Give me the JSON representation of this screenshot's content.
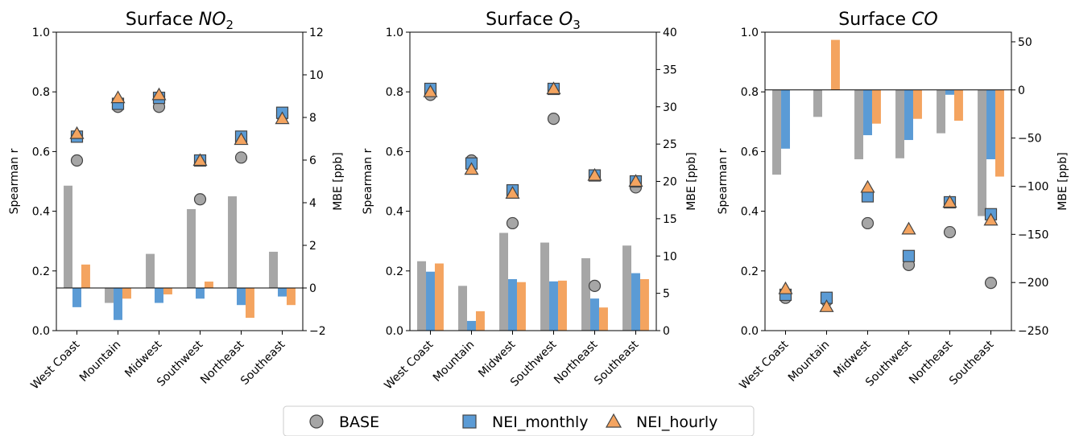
{
  "legend": {
    "placement": "bottom-center",
    "entries": [
      {
        "label": "BASE",
        "marker": "circle",
        "color": "#a6a6a6"
      },
      {
        "label": "NEI_monthly",
        "marker": "square",
        "color": "#5b9bd5"
      },
      {
        "label": "NEI_hourly",
        "marker": "triangle",
        "color": "#f4a460"
      }
    ]
  },
  "colors": {
    "BASE": "#a6a6a6",
    "NEI_monthly": "#5b9bd5",
    "NEI_hourly": "#f4a460"
  },
  "chart_data": [
    {
      "type": "bar",
      "title_prefix": "Surface ",
      "title_species": "NO",
      "title_sub": "2",
      "categories": [
        "West Coast",
        "Mountain",
        "Midwest",
        "Southwest",
        "Northeast",
        "Southeast"
      ],
      "ylabel_left": "Spearman r",
      "ylabel_right": "MBE [ppb]",
      "ylim_left": [
        0,
        1
      ],
      "ylim_right": [
        -2,
        12
      ],
      "yticks_left": [
        "0.0",
        "0.2",
        "0.4",
        "0.6",
        "0.8",
        "1.0"
      ],
      "yticks_right": [
        "−2",
        "0",
        "2",
        "4",
        "6",
        "8",
        "10",
        "12"
      ],
      "yticks_right_values": [
        -2,
        0,
        2,
        4,
        6,
        8,
        10,
        12
      ],
      "grid": false,
      "mbe_bars": {
        "BASE": [
          4.8,
          -0.7,
          1.6,
          3.7,
          4.3,
          1.7
        ],
        "NEI_monthly": [
          -0.9,
          -1.5,
          -0.7,
          -0.5,
          -0.8,
          -0.4
        ],
        "NEI_hourly": [
          1.1,
          -0.5,
          -0.3,
          0.3,
          -1.4,
          -0.8
        ]
      },
      "spearman_markers": {
        "BASE": [
          0.57,
          0.75,
          0.75,
          0.44,
          0.58,
          0.72
        ],
        "NEI_monthly": [
          0.65,
          0.76,
          0.78,
          0.57,
          0.65,
          0.73
        ],
        "NEI_hourly": [
          0.66,
          0.78,
          0.79,
          0.57,
          0.64,
          0.71
        ]
      }
    },
    {
      "type": "bar",
      "title_prefix": "Surface ",
      "title_species": "O",
      "title_sub": "3",
      "categories": [
        "West Coast",
        "Mountain",
        "Midwest",
        "Southwest",
        "Northeast",
        "Southeast"
      ],
      "ylabel_left": "Spearman r",
      "ylabel_right": "MBE [ppb]",
      "ylim_left": [
        0,
        1
      ],
      "ylim_right": [
        0,
        40
      ],
      "yticks_left": [
        "0.0",
        "0.2",
        "0.4",
        "0.6",
        "0.8",
        "1.0"
      ],
      "yticks_right": [
        "0",
        "5",
        "10",
        "15",
        "20",
        "25",
        "30",
        "35",
        "40"
      ],
      "yticks_right_values": [
        0,
        5,
        10,
        15,
        20,
        25,
        30,
        35,
        40
      ],
      "grid": false,
      "mbe_bars": {
        "BASE": [
          9.3,
          6.0,
          13.1,
          11.8,
          9.7,
          11.4
        ],
        "NEI_monthly": [
          7.9,
          1.3,
          6.9,
          6.6,
          4.3,
          7.7
        ],
        "NEI_hourly": [
          9.0,
          2.6,
          6.5,
          6.7,
          3.1,
          6.9
        ]
      },
      "spearman_markers": {
        "BASE": [
          0.79,
          0.57,
          0.36,
          0.71,
          0.15,
          0.48
        ],
        "NEI_monthly": [
          0.81,
          0.56,
          0.47,
          0.81,
          0.52,
          0.5
        ],
        "NEI_hourly": [
          0.8,
          0.54,
          0.46,
          0.81,
          0.52,
          0.5
        ]
      }
    },
    {
      "type": "bar",
      "title_prefix": "Surface ",
      "title_species": "CO",
      "title_sub": "",
      "categories": [
        "West Coast",
        "Mountain",
        "Midwest",
        "Southwest",
        "Northeast",
        "Southeast"
      ],
      "ylabel_left": "Spearman r",
      "ylabel_right": "MBE [ppb]",
      "ylim_left": [
        0,
        1
      ],
      "ylim_right": [
        -250,
        60
      ],
      "yticks_left": [
        "0.0",
        "0.2",
        "0.4",
        "0.6",
        "0.8",
        "1.0"
      ],
      "yticks_right": [
        "−250",
        "−200",
        "−150",
        "−100",
        "−50",
        "0",
        "50"
      ],
      "yticks_right_values": [
        -250,
        -200,
        -150,
        -100,
        -50,
        0,
        50
      ],
      "grid": false,
      "mbe_bars": {
        "BASE": [
          -88,
          -28,
          -72,
          -71,
          -45,
          -131
        ],
        "NEI_monthly": [
          -61,
          0,
          -47,
          -52,
          -5,
          -72
        ],
        "NEI_hourly": [
          0,
          52,
          -35,
          -30,
          -32,
          -90
        ]
      },
      "spearman_markers": {
        "BASE": [
          0.11,
          0.1,
          0.36,
          0.22,
          0.33,
          0.16
        ],
        "NEI_monthly": [
          0.12,
          0.11,
          0.45,
          0.25,
          0.43,
          0.39
        ],
        "NEI_hourly": [
          0.14,
          0.08,
          0.48,
          0.34,
          0.43,
          0.37
        ]
      }
    }
  ]
}
